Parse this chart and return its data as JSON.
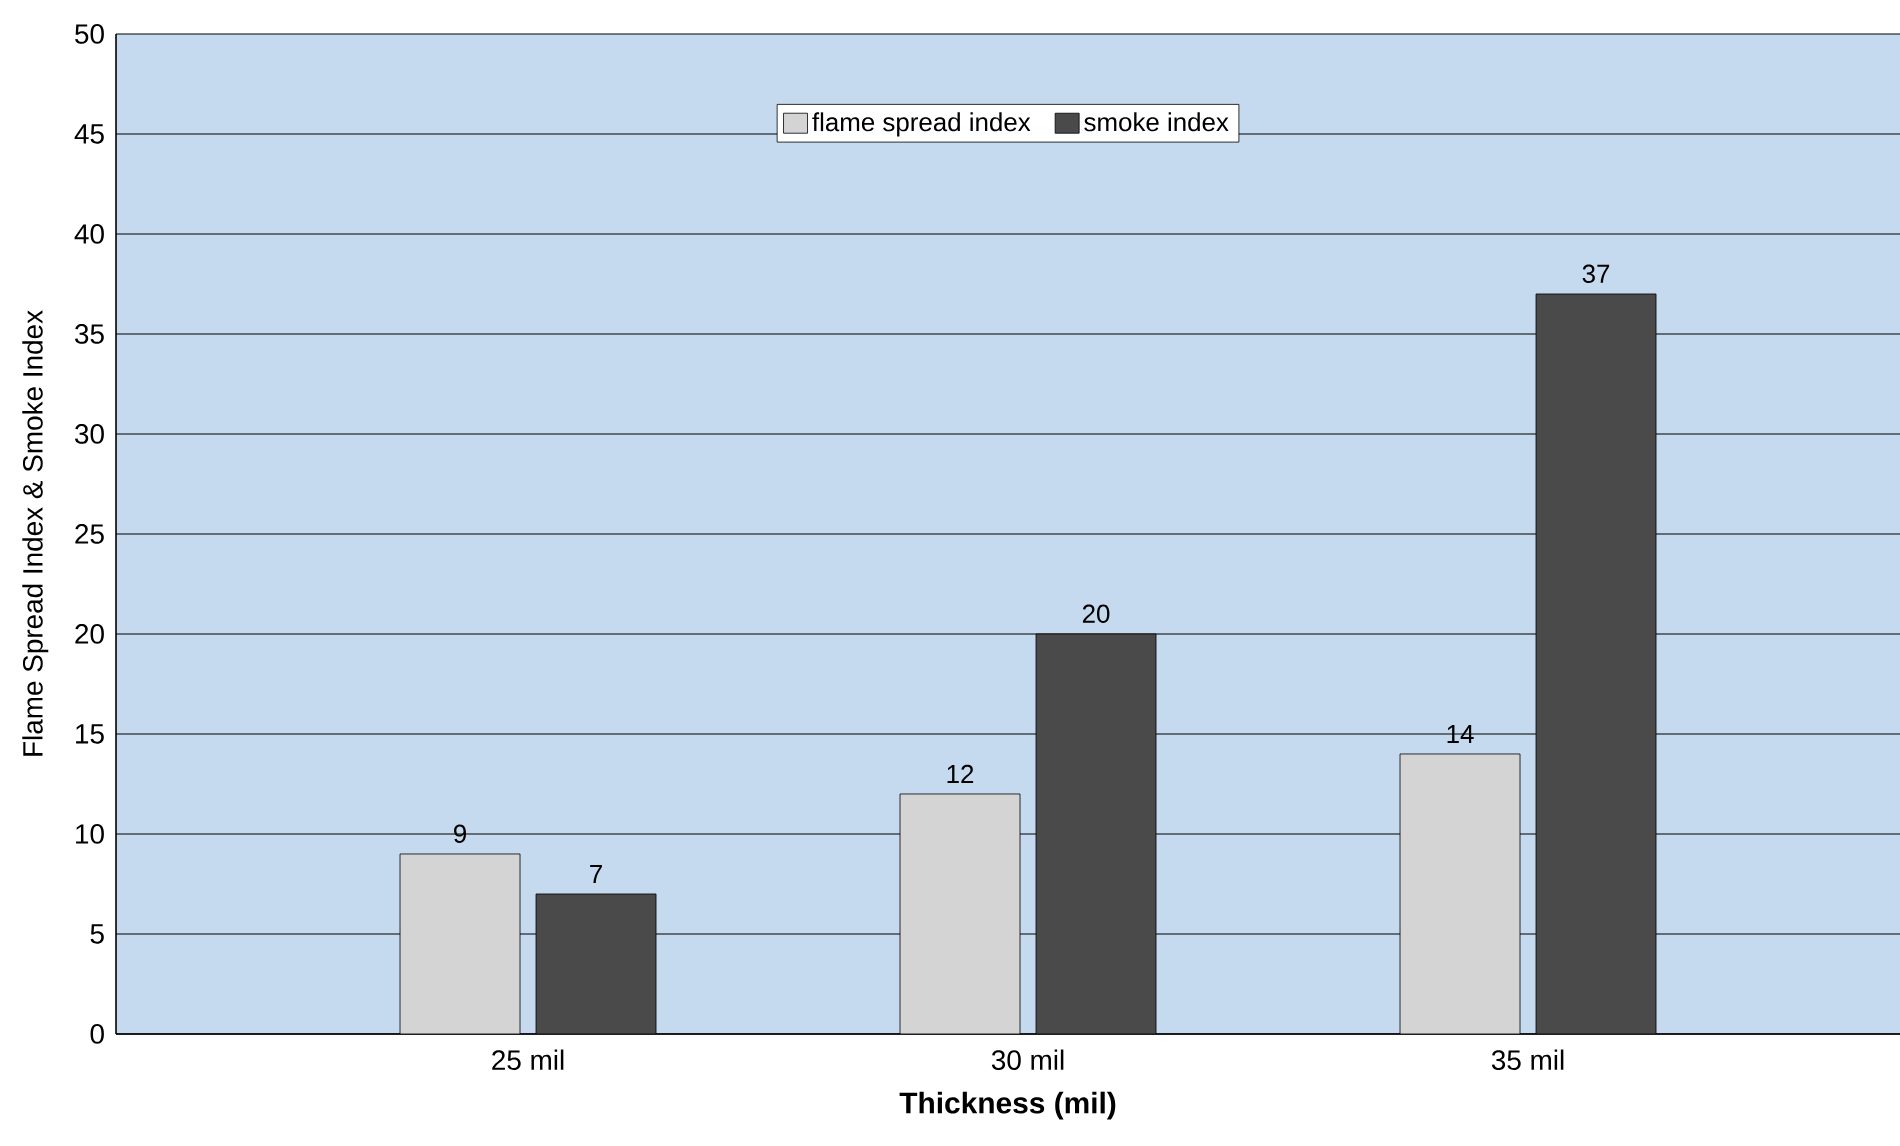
{
  "chart_data": {
    "type": "bar",
    "xlabel": "Thickness (mil)",
    "ylabel": "Flame Spread Index & Smoke Index",
    "categories": [
      "25 mil",
      "30 mil",
      "35 mil"
    ],
    "series": [
      {
        "name": "flame spread index",
        "color": "#d4d4d4",
        "values": [
          9,
          12,
          14
        ]
      },
      {
        "name": "smoke index",
        "color": "#4a4a4a",
        "values": [
          7,
          20,
          37
        ]
      }
    ],
    "ylim": [
      0,
      50
    ],
    "yticks": [
      0,
      5,
      10,
      15,
      20,
      25,
      30,
      35,
      40,
      45,
      50
    ],
    "grid": "y",
    "legend": "top",
    "data_labels": true
  }
}
